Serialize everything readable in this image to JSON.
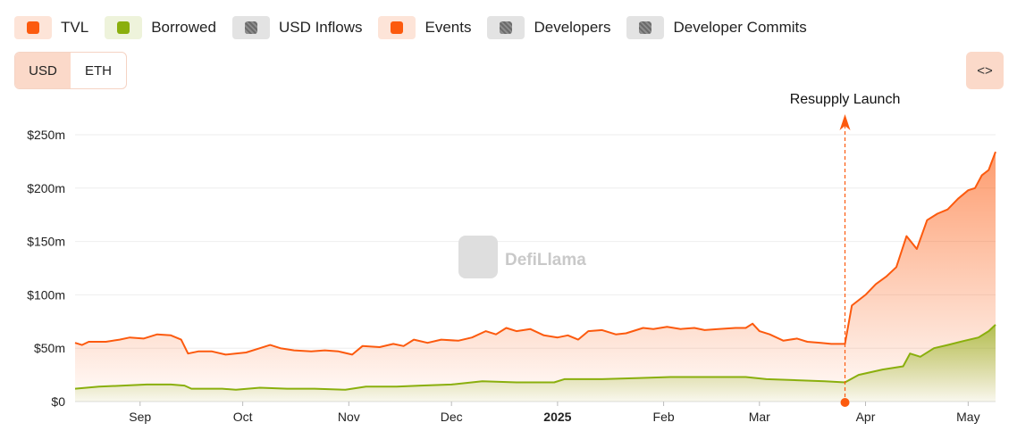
{
  "legend": [
    {
      "label": "TVL",
      "color": "#fc5a0e",
      "bg": "#fde4d8",
      "enabled": true
    },
    {
      "label": "Borrowed",
      "color": "#8aaf0d",
      "bg": "#eef3db",
      "enabled": true
    },
    {
      "label": "USD Inflows",
      "color": "#7a7a7a",
      "bg": "#e3e3e3",
      "enabled": false
    },
    {
      "label": "Events",
      "color": "#fc5a0e",
      "bg": "#fde4d8",
      "enabled": true
    },
    {
      "label": "Developers",
      "color": "#7a7a7a",
      "bg": "#e3e3e3",
      "enabled": false
    },
    {
      "label": "Developer Commits",
      "color": "#7a7a7a",
      "bg": "#e3e3e3",
      "enabled": false
    }
  ],
  "currency_toggle": {
    "options": [
      "USD",
      "ETH"
    ],
    "selected": "USD"
  },
  "embed_button": {
    "label": "<>"
  },
  "watermark": {
    "text": "DefiLlama"
  },
  "chart_data": {
    "type": "area",
    "x_axis_type": "date",
    "x_range": [
      "2024-08-13",
      "2025-05-09"
    ],
    "ylim": [
      0,
      250000000
    ],
    "y_ticks": [
      {
        "value": 0,
        "label": "$0"
      },
      {
        "value": 50000000,
        "label": "$50m"
      },
      {
        "value": 100000000,
        "label": "$100m"
      },
      {
        "value": 150000000,
        "label": "$150m"
      },
      {
        "value": 200000000,
        "label": "$200m"
      },
      {
        "value": 250000000,
        "label": "$250m"
      }
    ],
    "x_ticks": [
      {
        "date": "2024-09-01",
        "label": "Sep",
        "bold": false
      },
      {
        "date": "2024-10-01",
        "label": "Oct",
        "bold": false
      },
      {
        "date": "2024-11-01",
        "label": "Nov",
        "bold": false
      },
      {
        "date": "2024-12-01",
        "label": "Dec",
        "bold": false
      },
      {
        "date": "2025-01-01",
        "label": "2025",
        "bold": true
      },
      {
        "date": "2025-02-01",
        "label": "Feb",
        "bold": false
      },
      {
        "date": "2025-03-01",
        "label": "Mar",
        "bold": false
      },
      {
        "date": "2025-04-01",
        "label": "Apr",
        "bold": false
      },
      {
        "date": "2025-05-01",
        "label": "May",
        "bold": false
      }
    ],
    "grid": "horizontal",
    "series": [
      {
        "name": "TVL",
        "color": "#fc5a0e",
        "points": [
          [
            "2024-08-13",
            55
          ],
          [
            "2024-08-15",
            53
          ],
          [
            "2024-08-17",
            56
          ],
          [
            "2024-08-22",
            56
          ],
          [
            "2024-08-26",
            58
          ],
          [
            "2024-08-29",
            60
          ],
          [
            "2024-09-02",
            59
          ],
          [
            "2024-09-06",
            63
          ],
          [
            "2024-09-10",
            62
          ],
          [
            "2024-09-13",
            58
          ],
          [
            "2024-09-15",
            45
          ],
          [
            "2024-09-18",
            47
          ],
          [
            "2024-09-22",
            47
          ],
          [
            "2024-09-26",
            44
          ],
          [
            "2024-10-02",
            46
          ],
          [
            "2024-10-06",
            50
          ],
          [
            "2024-10-09",
            53
          ],
          [
            "2024-10-12",
            50
          ],
          [
            "2024-10-16",
            48
          ],
          [
            "2024-10-21",
            47
          ],
          [
            "2024-10-25",
            48
          ],
          [
            "2024-10-29",
            47
          ],
          [
            "2024-11-02",
            44
          ],
          [
            "2024-11-05",
            52
          ],
          [
            "2024-11-10",
            51
          ],
          [
            "2024-11-14",
            54
          ],
          [
            "2024-11-17",
            52
          ],
          [
            "2024-11-20",
            58
          ],
          [
            "2024-11-24",
            55
          ],
          [
            "2024-11-28",
            58
          ],
          [
            "2024-12-03",
            57
          ],
          [
            "2024-12-07",
            60
          ],
          [
            "2024-12-11",
            66
          ],
          [
            "2024-12-14",
            63
          ],
          [
            "2024-12-17",
            69
          ],
          [
            "2024-12-20",
            66
          ],
          [
            "2024-12-24",
            68
          ],
          [
            "2024-12-28",
            62
          ],
          [
            "2025-01-01",
            60
          ],
          [
            "2025-01-04",
            62
          ],
          [
            "2025-01-07",
            58
          ],
          [
            "2025-01-10",
            66
          ],
          [
            "2025-01-14",
            67
          ],
          [
            "2025-01-18",
            63
          ],
          [
            "2025-01-21",
            64
          ],
          [
            "2025-01-26",
            69
          ],
          [
            "2025-01-29",
            68
          ],
          [
            "2025-02-02",
            70
          ],
          [
            "2025-02-06",
            68
          ],
          [
            "2025-02-10",
            69
          ],
          [
            "2025-02-13",
            67
          ],
          [
            "2025-02-17",
            68
          ],
          [
            "2025-02-22",
            69
          ],
          [
            "2025-02-25",
            69
          ],
          [
            "2025-02-27",
            73
          ],
          [
            "2025-03-01",
            66
          ],
          [
            "2025-03-04",
            63
          ],
          [
            "2025-03-08",
            57
          ],
          [
            "2025-03-12",
            59
          ],
          [
            "2025-03-15",
            56
          ],
          [
            "2025-03-19",
            55
          ],
          [
            "2025-03-22",
            54
          ],
          [
            "2025-03-26",
            54
          ],
          [
            "2025-03-28",
            90
          ],
          [
            "2025-04-01",
            100
          ],
          [
            "2025-04-04",
            110
          ],
          [
            "2025-04-07",
            117
          ],
          [
            "2025-04-10",
            126
          ],
          [
            "2025-04-13",
            155
          ],
          [
            "2025-04-16",
            143
          ],
          [
            "2025-04-19",
            170
          ],
          [
            "2025-04-22",
            176
          ],
          [
            "2025-04-25",
            180
          ],
          [
            "2025-04-28",
            190
          ],
          [
            "2025-05-01",
            198
          ],
          [
            "2025-05-03",
            200
          ],
          [
            "2025-05-05",
            212
          ],
          [
            "2025-05-07",
            217
          ],
          [
            "2025-05-09",
            234
          ]
        ]
      },
      {
        "name": "Borrowed",
        "color": "#8aaf0d",
        "points": [
          [
            "2024-08-13",
            12
          ],
          [
            "2024-08-20",
            14
          ],
          [
            "2024-08-27",
            15
          ],
          [
            "2024-09-03",
            16
          ],
          [
            "2024-09-10",
            16
          ],
          [
            "2024-09-14",
            15
          ],
          [
            "2024-09-16",
            12
          ],
          [
            "2024-09-25",
            12
          ],
          [
            "2024-09-29",
            11
          ],
          [
            "2024-10-06",
            13
          ],
          [
            "2024-10-14",
            12
          ],
          [
            "2024-10-22",
            12
          ],
          [
            "2024-10-31",
            11
          ],
          [
            "2024-11-06",
            14
          ],
          [
            "2024-11-15",
            14
          ],
          [
            "2024-11-22",
            15
          ],
          [
            "2024-12-01",
            16
          ],
          [
            "2024-12-10",
            19
          ],
          [
            "2024-12-20",
            18
          ],
          [
            "2024-12-31",
            18
          ],
          [
            "2025-01-03",
            21
          ],
          [
            "2025-01-14",
            21
          ],
          [
            "2025-01-24",
            22
          ],
          [
            "2025-02-03",
            23
          ],
          [
            "2025-02-14",
            23
          ],
          [
            "2025-02-25",
            23
          ],
          [
            "2025-03-03",
            21
          ],
          [
            "2025-03-12",
            20
          ],
          [
            "2025-03-20",
            19
          ],
          [
            "2025-03-26",
            18
          ],
          [
            "2025-03-30",
            25
          ],
          [
            "2025-04-06",
            30
          ],
          [
            "2025-04-12",
            33
          ],
          [
            "2025-04-14",
            45
          ],
          [
            "2025-04-17",
            42
          ],
          [
            "2025-04-21",
            50
          ],
          [
            "2025-04-25",
            53
          ],
          [
            "2025-04-30",
            57
          ],
          [
            "2025-05-04",
            60
          ],
          [
            "2025-05-07",
            66
          ],
          [
            "2025-05-09",
            72
          ]
        ]
      }
    ],
    "value_unit_multiplier": 1000000,
    "annotations": [
      {
        "date": "2025-03-26",
        "label": "Resupply Launch"
      }
    ],
    "legend_position": "top-left"
  }
}
